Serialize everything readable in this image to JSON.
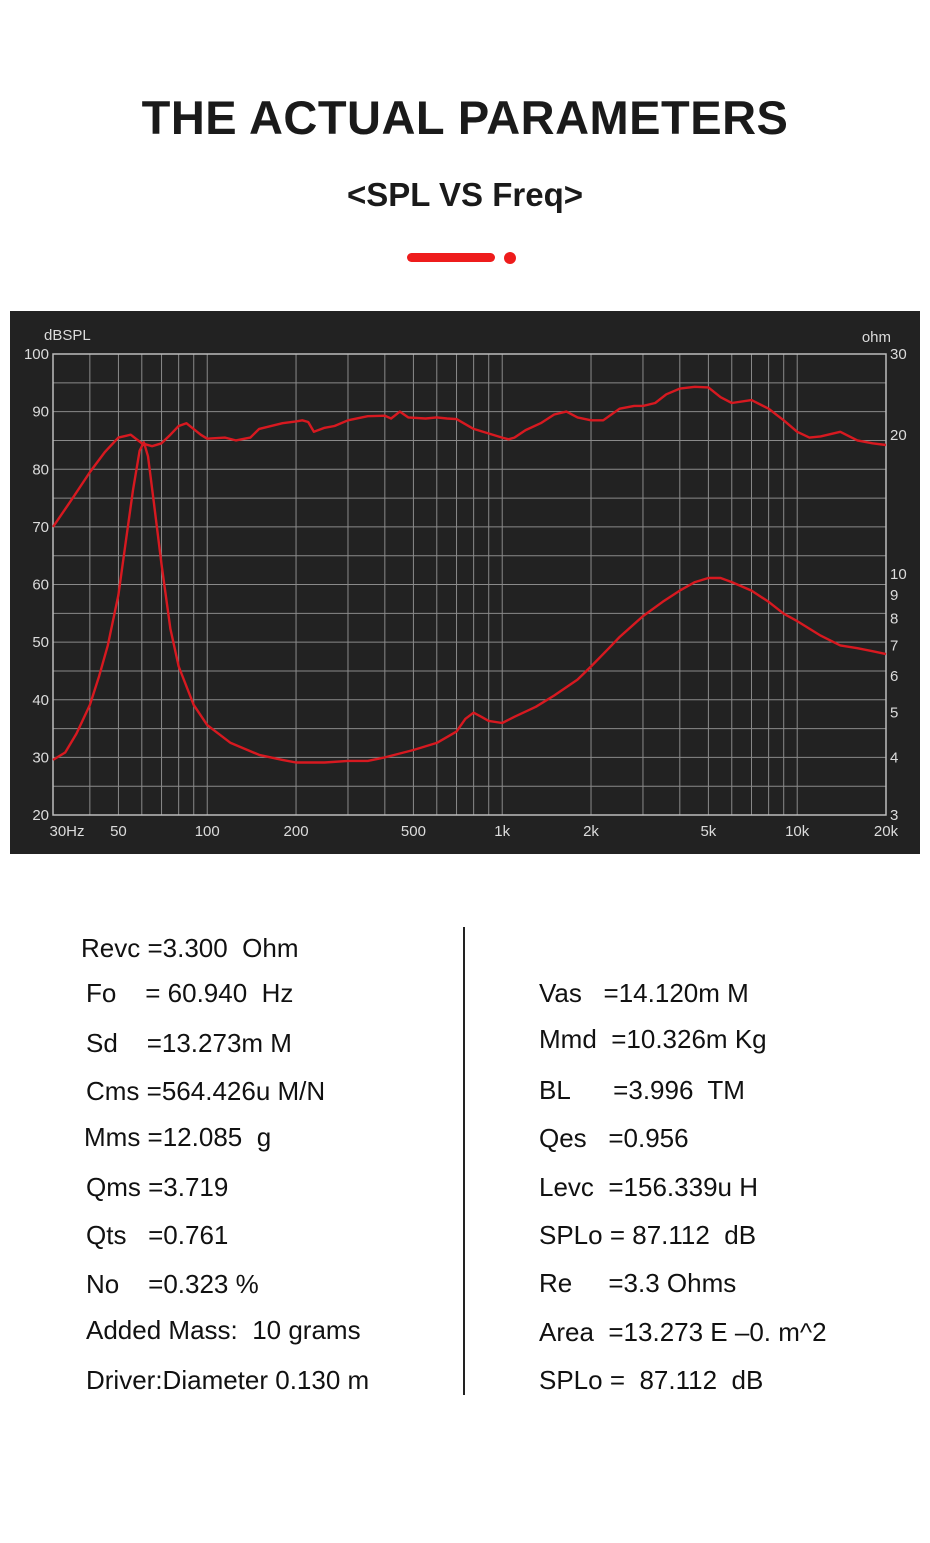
{
  "header": {
    "title": "THE ACTUAL PARAMETERS",
    "subtitle": "<SPL VS Freq>"
  },
  "colors": {
    "accent": "#ee1c1c",
    "chart_bg": "#222222",
    "curve": "#d71920",
    "grid": "#8a8a8a"
  },
  "chart_data": {
    "type": "line",
    "x_scale": "log",
    "xlim": [
      30,
      20000
    ],
    "x_ticks": [
      {
        "value": 30,
        "label": "30Hz"
      },
      {
        "value": 50,
        "label": "50"
      },
      {
        "value": 100,
        "label": "100"
      },
      {
        "value": 200,
        "label": "200"
      },
      {
        "value": 500,
        "label": "500"
      },
      {
        "value": 1000,
        "label": "1k"
      },
      {
        "value": 2000,
        "label": "2k"
      },
      {
        "value": 5000,
        "label": "5k"
      },
      {
        "value": 10000,
        "label": "10k"
      },
      {
        "value": 20000,
        "label": "20k"
      }
    ],
    "y_left": {
      "label": "dBSPL",
      "lim": [
        20,
        100
      ],
      "ticks": [
        100,
        90,
        80,
        70,
        60,
        50,
        40,
        30,
        20
      ]
    },
    "y_right": {
      "label": "ohm",
      "scale": "log",
      "lim": [
        3,
        30
      ],
      "ticks": [
        30,
        20,
        10,
        9,
        8,
        7,
        6,
        5,
        4,
        3
      ]
    },
    "grid": true,
    "series": [
      {
        "axis": "left",
        "values": [
          [
            30,
            70
          ],
          [
            35,
            75
          ],
          [
            40,
            79.5
          ],
          [
            45,
            83
          ],
          [
            50,
            85.5
          ],
          [
            55,
            86
          ],
          [
            60,
            84.5
          ],
          [
            65,
            84
          ],
          [
            70,
            84.5
          ],
          [
            75,
            86
          ],
          [
            80,
            87.5
          ],
          [
            85,
            88
          ],
          [
            95,
            86
          ],
          [
            100,
            85.3
          ],
          [
            115,
            85.5
          ],
          [
            125,
            85
          ],
          [
            140,
            85.5
          ],
          [
            150,
            87
          ],
          [
            180,
            88
          ],
          [
            200,
            88.3
          ],
          [
            210,
            88.5
          ],
          [
            220,
            88.2
          ],
          [
            230,
            86.5
          ],
          [
            250,
            87.2
          ],
          [
            270,
            87.5
          ],
          [
            300,
            88.5
          ],
          [
            350,
            89.2
          ],
          [
            400,
            89.3
          ],
          [
            420,
            88.8
          ],
          [
            450,
            90
          ],
          [
            480,
            89
          ],
          [
            550,
            88.8
          ],
          [
            600,
            89
          ],
          [
            650,
            88.8
          ],
          [
            700,
            88.7
          ],
          [
            800,
            87
          ],
          [
            900,
            86.2
          ],
          [
            1000,
            85.5
          ],
          [
            1050,
            85.2
          ],
          [
            1100,
            85.5
          ],
          [
            1200,
            86.8
          ],
          [
            1350,
            88
          ],
          [
            1500,
            89.5
          ],
          [
            1650,
            90
          ],
          [
            1800,
            89
          ],
          [
            2000,
            88.5
          ],
          [
            2200,
            88.5
          ],
          [
            2500,
            90.5
          ],
          [
            2800,
            91
          ],
          [
            3000,
            91
          ],
          [
            3300,
            91.5
          ],
          [
            3600,
            93
          ],
          [
            4000,
            94
          ],
          [
            4500,
            94.3
          ],
          [
            5000,
            94.2
          ],
          [
            5500,
            92.5
          ],
          [
            6000,
            91.5
          ],
          [
            7000,
            92
          ],
          [
            8000,
            90.5
          ],
          [
            9000,
            88.5
          ],
          [
            10000,
            86.5
          ],
          [
            11000,
            85.5
          ],
          [
            12000,
            85.7
          ],
          [
            14000,
            86.5
          ],
          [
            16000,
            85
          ],
          [
            18000,
            84.5
          ],
          [
            20000,
            84.2
          ]
        ]
      },
      {
        "axis": "right",
        "values": [
          [
            30,
            3.95
          ],
          [
            33,
            4.1
          ],
          [
            36,
            4.5
          ],
          [
            40,
            5.2
          ],
          [
            43,
            6.0
          ],
          [
            46,
            7.0
          ],
          [
            50,
            9.0
          ],
          [
            53,
            11.8
          ],
          [
            56,
            15.2
          ],
          [
            59,
            18.5
          ],
          [
            61,
            19.3
          ],
          [
            63,
            18.0
          ],
          [
            66,
            14.2
          ],
          [
            70,
            10.5
          ],
          [
            75,
            7.6
          ],
          [
            80,
            6.3
          ],
          [
            90,
            5.2
          ],
          [
            100,
            4.7
          ],
          [
            120,
            4.3
          ],
          [
            150,
            4.05
          ],
          [
            180,
            3.95
          ],
          [
            200,
            3.9
          ],
          [
            250,
            3.9
          ],
          [
            300,
            3.93
          ],
          [
            350,
            3.93
          ],
          [
            400,
            4.0
          ],
          [
            500,
            4.15
          ],
          [
            600,
            4.3
          ],
          [
            700,
            4.55
          ],
          [
            750,
            4.85
          ],
          [
            800,
            5.0
          ],
          [
            850,
            4.9
          ],
          [
            900,
            4.8
          ],
          [
            1000,
            4.75
          ],
          [
            1100,
            4.9
          ],
          [
            1300,
            5.15
          ],
          [
            1500,
            5.45
          ],
          [
            1800,
            5.9
          ],
          [
            2000,
            6.3
          ],
          [
            2300,
            6.9
          ],
          [
            2500,
            7.3
          ],
          [
            3000,
            8.1
          ],
          [
            3500,
            8.7
          ],
          [
            4000,
            9.2
          ],
          [
            4500,
            9.6
          ],
          [
            5000,
            9.8
          ],
          [
            5500,
            9.8
          ],
          [
            6000,
            9.6
          ],
          [
            7000,
            9.2
          ],
          [
            8000,
            8.7
          ],
          [
            9000,
            8.2
          ],
          [
            10000,
            7.9
          ],
          [
            12000,
            7.35
          ],
          [
            14000,
            7.0
          ],
          [
            16000,
            6.9
          ],
          [
            18000,
            6.8
          ],
          [
            20000,
            6.7
          ]
        ]
      }
    ]
  },
  "params_left": [
    "Revc =3.300  Ohm",
    "Fo    = 60.940  Hz",
    "Sd    =13.273m M",
    "Cms =564.426u M/N",
    "Mms =12.085  g",
    "Qms =3.719",
    "Qts   =0.761",
    "No    =0.323 %",
    "Added Mass:  10 grams",
    "Driver:Diameter 0.130 m"
  ],
  "params_right": [
    "Vas   =14.120m M",
    "Mmd  =10.326m Kg",
    "BL      =3.996  TM",
    "Qes   =0.956",
    "Levc  =156.339u H",
    "SPLo = 87.112  dB",
    "Re     =3.3 Ohms",
    "Area  =13.273 E –0. m^2",
    "SPLo =  87.112  dB"
  ]
}
